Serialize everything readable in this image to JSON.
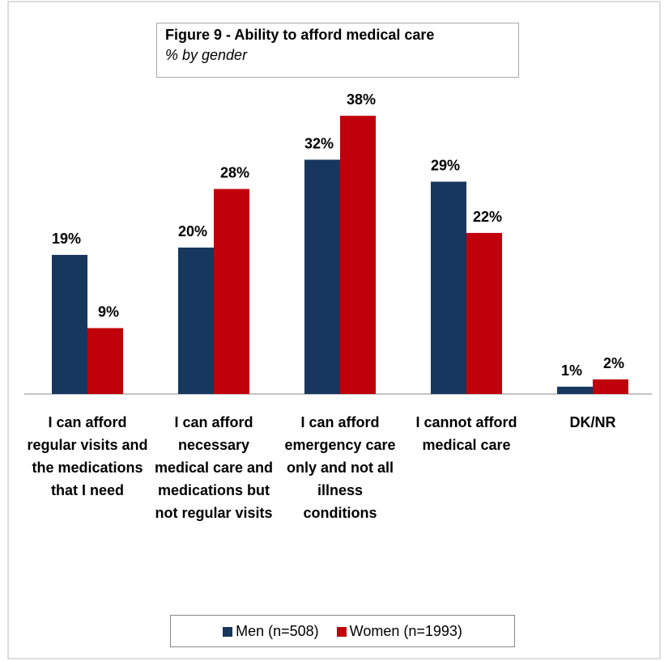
{
  "chart_data": {
    "type": "bar",
    "title": "Figure 9 - Ability to afford medical care",
    "subtitle": "% by gender",
    "categories": [
      "I can afford regular visits and the medications that I need",
      "I can afford necessary medical care and medications but not regular visits",
      "I can afford emergency care only and not all illness conditions",
      "I cannot afford medical care",
      "DK/NR"
    ],
    "series": [
      {
        "name": "Men (n=508)",
        "color": "#17375e",
        "values": [
          19,
          20,
          32,
          29,
          1
        ],
        "value_labels": [
          "19%",
          "20%",
          "32%",
          "29%",
          "1%"
        ]
      },
      {
        "name": "Women (n=1993)",
        "color": "#c0000b",
        "values": [
          9,
          28,
          38,
          22,
          2
        ],
        "value_labels": [
          "9%",
          "28%",
          "38%",
          "22%",
          "2%"
        ]
      }
    ],
    "legend": "bottom"
  }
}
